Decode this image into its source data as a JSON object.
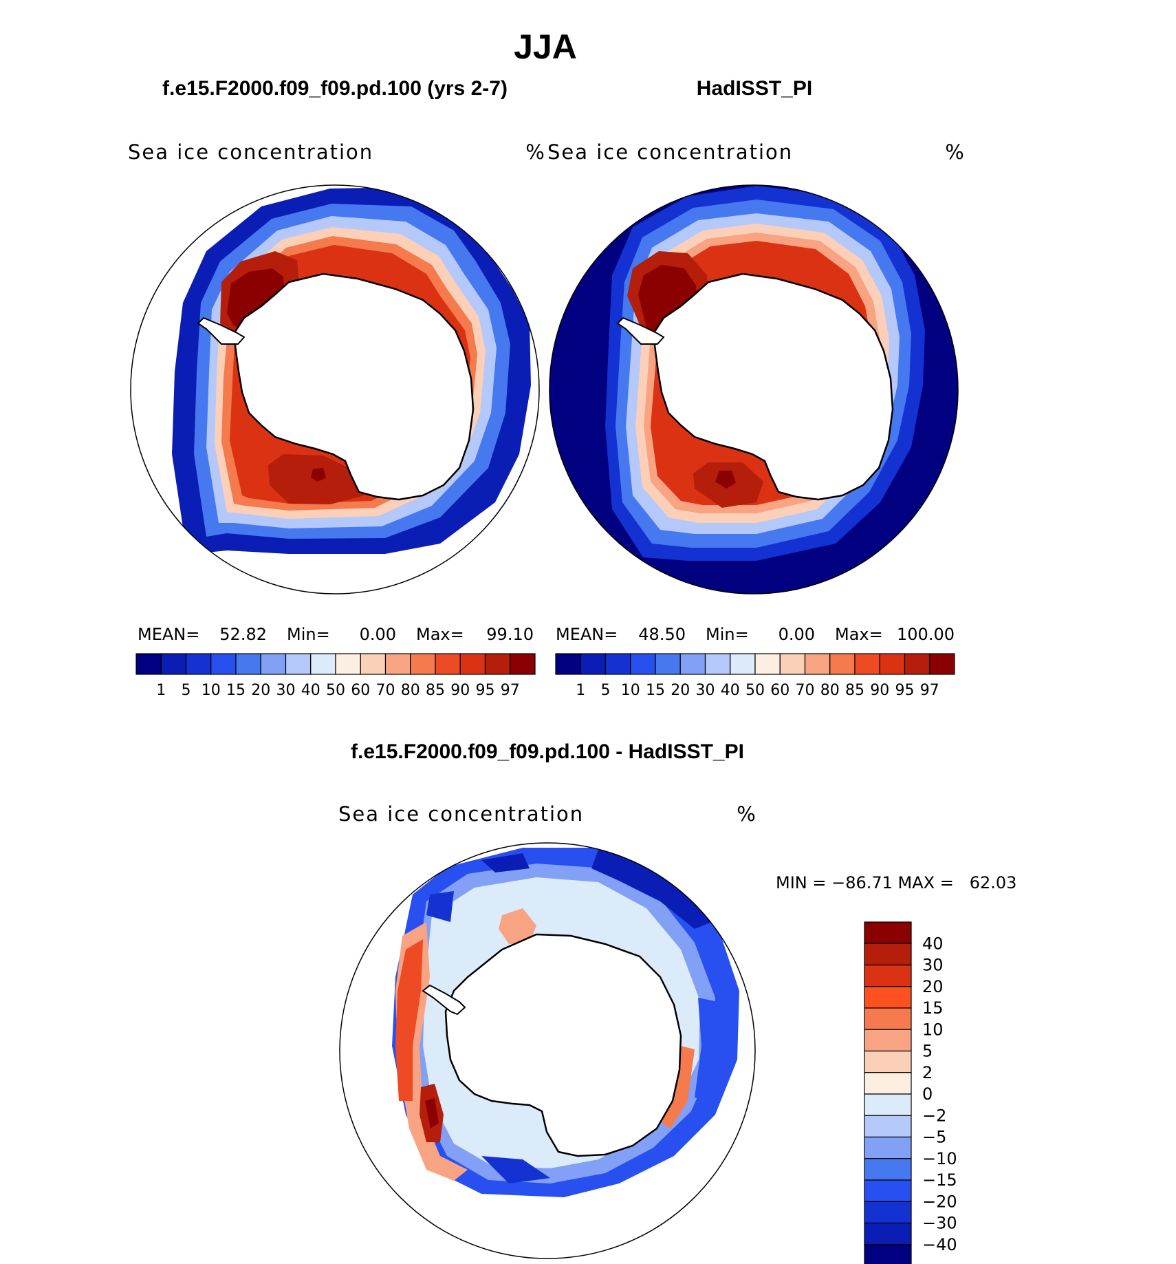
{
  "figure": {
    "title": "JJA",
    "panels": [
      {
        "case": "f.e15.F2000.f09_f09.pd.100 (yrs 2-7)",
        "variable": "Sea ice concentration",
        "units": "%",
        "stats": {
          "mean_label": "MEAN=",
          "mean": "52.82",
          "min_label": "Min=",
          "min": "0.00",
          "max_label": "Max=",
          "max": "99.10"
        }
      },
      {
        "case": "HadISST_PI",
        "variable": "Sea ice concentration",
        "units": "%",
        "stats": {
          "mean_label": "MEAN=",
          "mean": "48.50",
          "min_label": "Min=",
          "min": "0.00",
          "max_label": "Max=",
          "max": "100.00"
        }
      }
    ],
    "diff": {
      "title": "f.e15.F2000.f09_f09.pd.100 - HadISST_PI",
      "variable": "Sea ice concentration",
      "units": "%",
      "minmax": "MIN = −86.71 MAX =   62.03"
    }
  },
  "chart_data": [
    {
      "type": "heatmap",
      "title": "f.e15.F2000.f09_f09.pd.100 (yrs 2-7)",
      "projection": "south-polar-stereographic",
      "field": "Sea ice concentration (%)",
      "mean": 52.82,
      "min": 0.0,
      "max": 99.1,
      "levels": [
        "1",
        "5",
        "10",
        "15",
        "20",
        "30",
        "40",
        "50",
        "60",
        "70",
        "80",
        "85",
        "90",
        "95",
        "97"
      ],
      "colors": [
        "#000080",
        "#0a1db4",
        "#1432d2",
        "#2850f0",
        "#4678f0",
        "#82a0f5",
        "#b4c8fa",
        "#dcebfa",
        "#fdeee2",
        "#fcd0b8",
        "#f8a382",
        "#f57a4d",
        "#ee4a23",
        "#dc3214",
        "#b41e0a",
        "#8b0000"
      ]
    },
    {
      "type": "heatmap",
      "title": "HadISST_PI",
      "projection": "south-polar-stereographic",
      "field": "Sea ice concentration (%)",
      "mean": 48.5,
      "min": 0.0,
      "max": 100.0,
      "levels": [
        "1",
        "5",
        "10",
        "15",
        "20",
        "30",
        "40",
        "50",
        "60",
        "70",
        "80",
        "85",
        "90",
        "95",
        "97"
      ],
      "colors": [
        "#000080",
        "#0a1db4",
        "#1432d2",
        "#2850f0",
        "#4678f0",
        "#82a0f5",
        "#b4c8fa",
        "#dcebfa",
        "#fdeee2",
        "#fcd0b8",
        "#f8a382",
        "#f57a4d",
        "#ee4a23",
        "#dc3214",
        "#b41e0a",
        "#8b0000"
      ]
    },
    {
      "type": "heatmap",
      "title": "f.e15.F2000.f09_f09.pd.100 - HadISST_PI",
      "projection": "south-polar-stereographic",
      "field": "Sea ice concentration (%)",
      "min": -86.71,
      "max": 62.03,
      "levels": [
        "40",
        "30",
        "20",
        "15",
        "10",
        "5",
        "2",
        "0",
        "−2",
        "−5",
        "−10",
        "−15",
        "−20",
        "−30",
        "−40"
      ],
      "colors": [
        "#8b0000",
        "#b41e0a",
        "#dc3214",
        "#ff5020",
        "#f57a4d",
        "#f8a382",
        "#fcd0b8",
        "#fdeee2",
        "#dcebfa",
        "#b4c8fa",
        "#82a0f5",
        "#4678f0",
        "#2850f0",
        "#1432d2",
        "#0a1db4",
        "#000080"
      ]
    }
  ]
}
